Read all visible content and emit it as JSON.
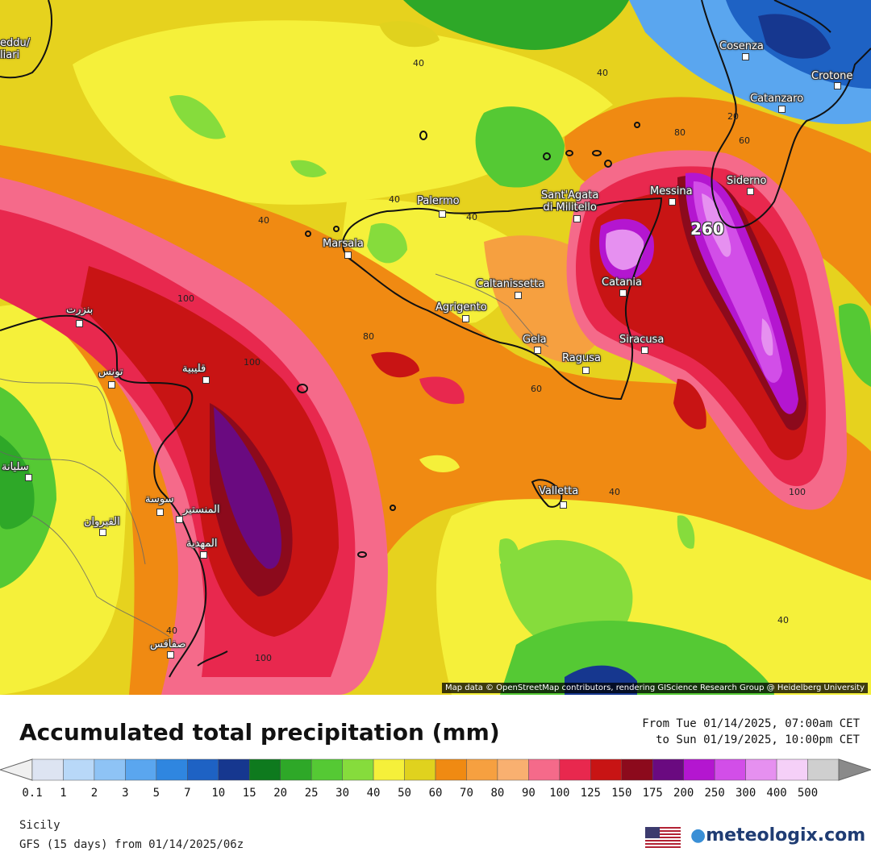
{
  "map": {
    "attribution": "Map data © OpenStreetMap contributors, rendering GIScience Research Group @ Heidelberg University",
    "peak_label": "260",
    "cities": [
      {
        "name": "Cosenza"
      },
      {
        "name": "Crotone"
      },
      {
        "name": "Catanzaro"
      },
      {
        "name": "Siderno"
      },
      {
        "name": "Messina"
      },
      {
        "name": "Sant'Agata\ndi Militello"
      },
      {
        "name": "Palermo"
      },
      {
        "name": "Marsala"
      },
      {
        "name": "Caltanissetta"
      },
      {
        "name": "Agrigento"
      },
      {
        "name": "Catania"
      },
      {
        "name": "Gela"
      },
      {
        "name": "Ragusa"
      },
      {
        "name": "Siracusa"
      },
      {
        "name": "Valletta"
      },
      {
        "name": "بنزرت"
      },
      {
        "name": "تونس"
      },
      {
        "name": "قليبية"
      },
      {
        "name": "سوسة"
      },
      {
        "name": "المنستير"
      },
      {
        "name": "المهدية"
      },
      {
        "name": "القيروان"
      },
      {
        "name": "صفاقس"
      },
      {
        "name": "سليانة"
      },
      {
        "name": "eddu/\nliari"
      }
    ],
    "contour_labels": [
      "40",
      "40",
      "40",
      "40",
      "40",
      "100",
      "100",
      "80",
      "60",
      "60",
      "80",
      "100",
      "20",
      "40",
      "40",
      "100",
      "40"
    ]
  },
  "legend": {
    "title": "Accumulated total precipitation (mm)",
    "period_from": "From Tue 01/14/2025, 07:00am CET",
    "period_to": "to Sun 01/19/2025, 10:00pm CET",
    "ticks": [
      "0.1",
      "1",
      "2",
      "3",
      "5",
      "7",
      "10",
      "15",
      "20",
      "25",
      "30",
      "40",
      "50",
      "60",
      "70",
      "80",
      "90",
      "100",
      "125",
      "150",
      "175",
      "200",
      "250",
      "300",
      "400",
      "500"
    ],
    "colors": [
      "#dde4f2",
      "#b8d8f8",
      "#8ec3f5",
      "#5aa6ef",
      "#2f86e0",
      "#1e62c4",
      "#16378f",
      "#0e7a1e",
      "#2ea828",
      "#55c934",
      "#86dc3c",
      "#f5f03a",
      "#e0d21e",
      "#f08a12",
      "#f6a040",
      "#f9b070",
      "#f56a8a",
      "#e8284e",
      "#c81414",
      "#8c0a1c",
      "#6a0a80",
      "#b416d0",
      "#d24ee8",
      "#e690f0",
      "#f5d0f8",
      "#cfcfcf"
    ],
    "left_arrow_color": "#f0f0f0",
    "right_arrow_color": "#8a8a8a"
  },
  "footer": {
    "region": "Sicily",
    "model": "GFS (15 days) from 01/14/2025/06z",
    "brand": "meteologix.com"
  }
}
